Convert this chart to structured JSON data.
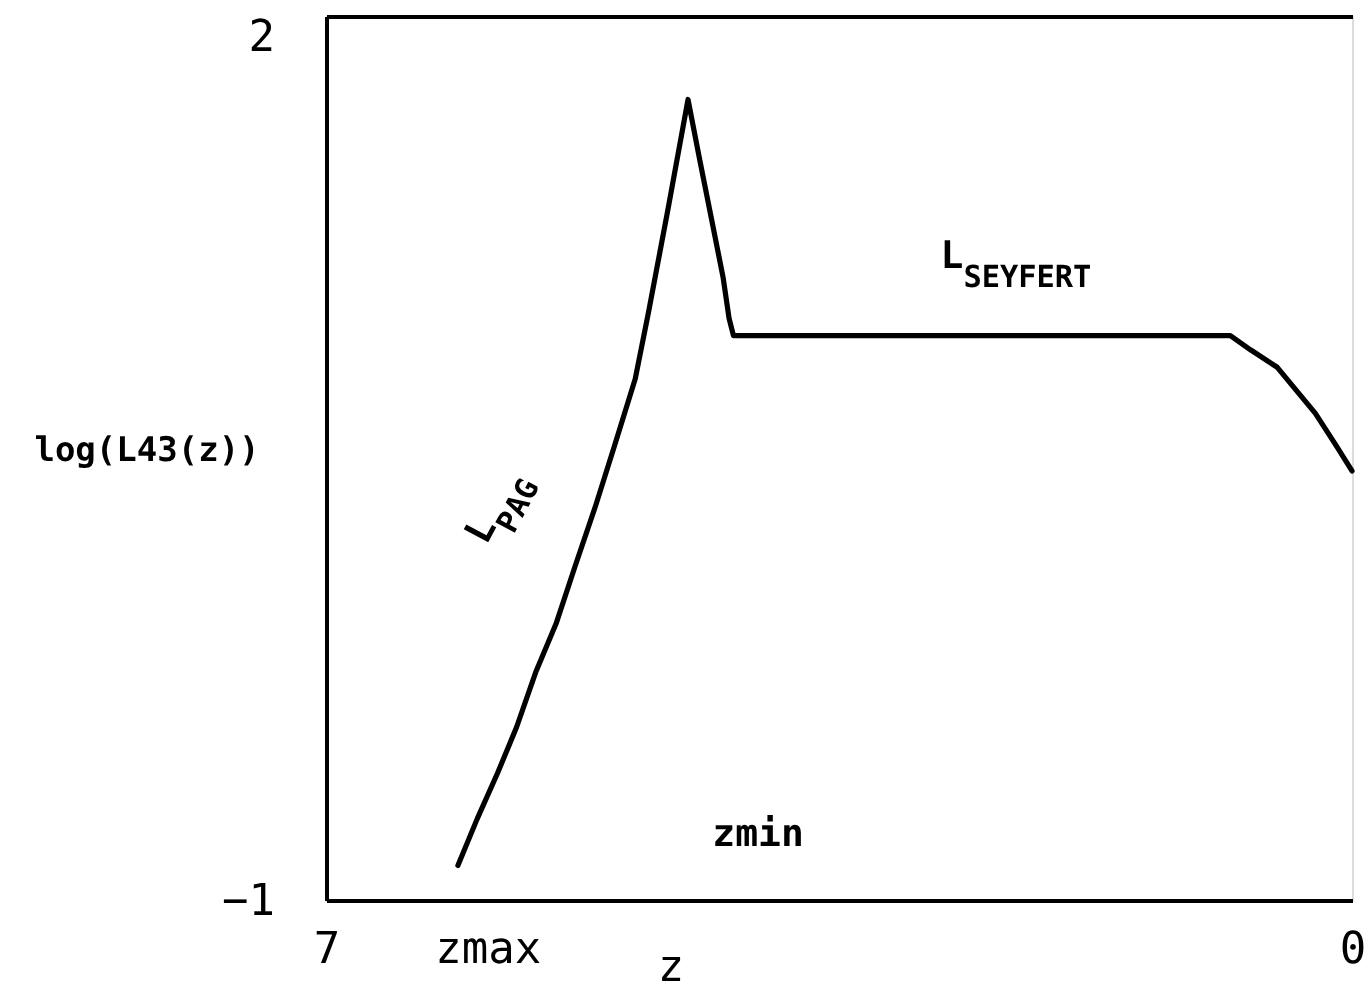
{
  "chart_data": {
    "type": "line",
    "xlabel": "z",
    "ylabel": "log(L43(z))",
    "series": [
      {
        "color": "#000000",
        "x": [
          6.1,
          5.97,
          5.83,
          5.7,
          5.57,
          5.43,
          5.3,
          5.16,
          5.03,
          4.89,
          4.8,
          4.67,
          4.53,
          4.45,
          4.36,
          4.29,
          4.25,
          4.22,
          0.83,
          0.69,
          0.51,
          0.38,
          0.25,
          0.11,
          0
        ],
        "values": [
          -0.88,
          -0.72,
          -0.56,
          -0.4,
          -0.21,
          -0.04,
          0.16,
          0.37,
          0.58,
          0.81,
          1.04,
          1.39,
          1.78,
          1.57,
          1.34,
          1.16,
          1.02,
          0.96,
          0.96,
          0.91,
          0.85,
          0.77,
          0.69,
          0.58,
          0.49
        ]
      }
    ],
    "xlim": [
      7,
      0
    ],
    "xticks": [
      7,
      {
        "value": 5.9,
        "label": "zmax"
      },
      0
    ],
    "ylim": [
      -1,
      2.07
    ],
    "yticks": [
      -1,
      2
    ],
    "line_style": "solid",
    "annotations": [
      "L$_{PAG}$",
      "L$_{SEYFERT}$",
      "zmin"
    ]
  }
}
